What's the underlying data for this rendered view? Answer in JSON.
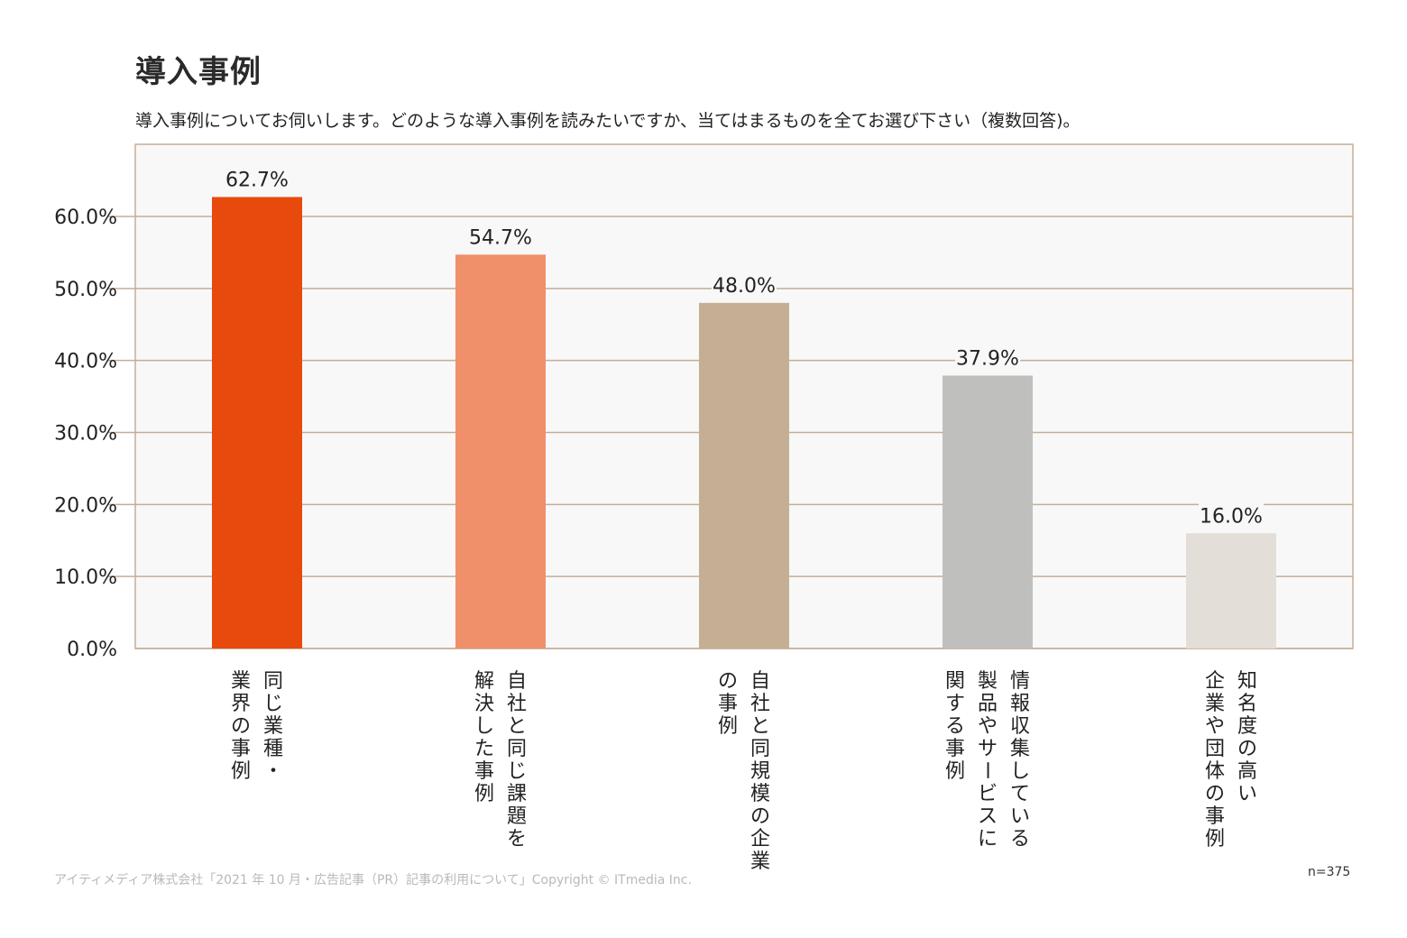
{
  "header": {
    "title": "導入事例",
    "question": "導入事例についてお伺いします。どのような導入事例を読みたいですか、当てはまるものを全てお選び下さい（複数回答)。"
  },
  "footer": {
    "copyright": "アイティメディア株式会社「2021 年 10 月・広告記事（PR）記事の利用について」Copyright © ITmedia Inc.",
    "sample_size": "n=375"
  },
  "chart_data": {
    "type": "bar",
    "categories": [
      [
        "同じ業種・",
        "業界の事例"
      ],
      [
        "自社と同じ課題を",
        "解決した事例"
      ],
      [
        "自社と同規模の企業",
        "の事例"
      ],
      [
        "情報収集している",
        "製品やサービスに",
        "関する事例"
      ],
      [
        "知名度の高い",
        "企業や団体の事例"
      ]
    ],
    "values": [
      62.7,
      54.7,
      48.0,
      37.9,
      16.0
    ],
    "value_labels": [
      "62.7%",
      "54.7%",
      "48.0%",
      "37.9%",
      "16.0%"
    ],
    "colors": [
      "#e8490c",
      "#f0906a",
      "#c5af94",
      "#bfc0bd",
      "#e3ded7"
    ],
    "ylim": [
      0,
      60
    ],
    "yticks": [
      "0.0%",
      "10.0%",
      "20.0%",
      "30.0%",
      "40.0%",
      "50.0%",
      "60.0%"
    ],
    "grid": true,
    "plot_background": "#f8f8f8",
    "frame_color": "#c5ad96"
  }
}
